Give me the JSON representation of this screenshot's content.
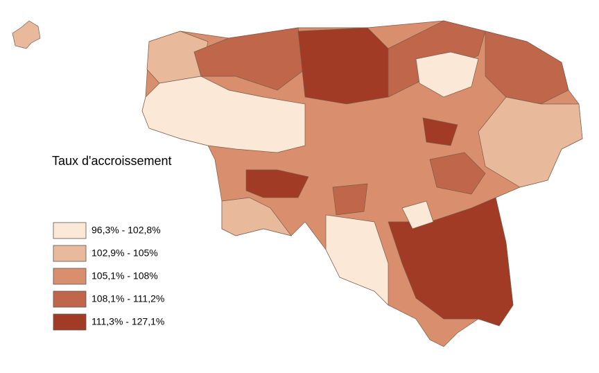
{
  "legend": {
    "title": "Taux d'accroissement",
    "entries": [
      {
        "label": "96,3% - 102,8%",
        "color": "#fbe8d6"
      },
      {
        "label": "102,9% - 105%",
        "color": "#e9b99b"
      },
      {
        "label": "105,1% - 108%",
        "color": "#d98f6d"
      },
      {
        "label": "108,1% - 111,2%",
        "color": "#c0664a"
      },
      {
        "label": "111,3% - 127,1%",
        "color": "#a23b25"
      }
    ]
  }
}
